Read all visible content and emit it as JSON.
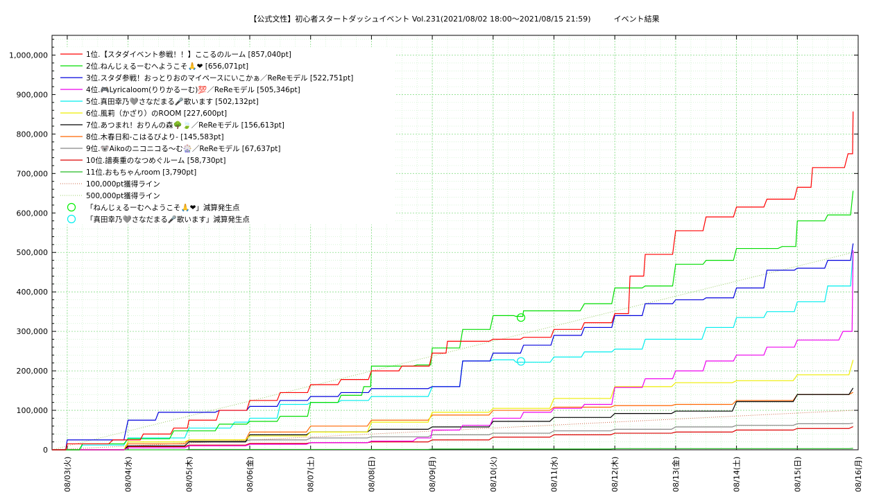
{
  "chart_data": {
    "type": "line",
    "title": "【公式文性】初心者スタートダッシュイベント Vol.231(2021/08/02 18:00〜2021/08/15 21:59)　　　イベント結果",
    "ylim": [
      0,
      1050000
    ],
    "xlim": [
      "2021-08-02 18:00",
      "2021-08-16 00:00"
    ],
    "grid": true,
    "legend_position": "top-left",
    "y_ticks": [
      "0",
      "100,000",
      "200,000",
      "300,000",
      "400,000",
      "500,000",
      "600,000",
      "700,000",
      "800,000",
      "900,000",
      "1,000,000"
    ],
    "y_tick_values": [
      0,
      100000,
      200000,
      300000,
      400000,
      500000,
      600000,
      700000,
      800000,
      900000,
      1000000
    ],
    "x_ticks": [
      "08/03(火)",
      "08/04(水)",
      "08/05(木)",
      "08/06(金)",
      "08/07(土)",
      "08/08(日)",
      "08/09(月)",
      "08/10(火)",
      "08/11(水)",
      "08/12(木)",
      "08/13(金)",
      "08/14(土)",
      "08/15(日)",
      "08/16(月)"
    ],
    "x_tick_values": [
      "2021-08-03",
      "2021-08-04",
      "2021-08-05",
      "2021-08-06",
      "2021-08-07",
      "2021-08-08",
      "2021-08-09",
      "2021-08-10",
      "2021-08-11",
      "2021-08-12",
      "2021-08-13",
      "2021-08-14",
      "2021-08-15",
      "2021-08-16"
    ],
    "series": [
      {
        "name": "1位.【スタダイベント参戦！！】ここるのルーム [857,040pt]",
        "color": "#ff0000",
        "points": [
          [
            "2021-08-02 18:00",
            0
          ],
          [
            "2021-08-03 00:00",
            15000
          ],
          [
            "2021-08-03 18:00",
            25000
          ],
          [
            "2021-08-04 06:00",
            40000
          ],
          [
            "2021-08-04 18:00",
            55000
          ],
          [
            "2021-08-05 00:00",
            75000
          ],
          [
            "2021-08-05 12:00",
            100000
          ],
          [
            "2021-08-06 00:00",
            125000
          ],
          [
            "2021-08-06 12:00",
            145000
          ],
          [
            "2021-08-07 00:00",
            165000
          ],
          [
            "2021-08-07 12:00",
            178000
          ],
          [
            "2021-08-08 00:00",
            200000
          ],
          [
            "2021-08-08 12:00",
            212000
          ],
          [
            "2021-08-09 00:00",
            245000
          ],
          [
            "2021-08-09 06:00",
            275000
          ],
          [
            "2021-08-10 00:00",
            280000
          ],
          [
            "2021-08-10 12:00",
            285000
          ],
          [
            "2021-08-11 00:00",
            305000
          ],
          [
            "2021-08-11 12:00",
            322000
          ],
          [
            "2021-08-12 00:00",
            345000
          ],
          [
            "2021-08-12 06:00",
            440000
          ],
          [
            "2021-08-12 12:00",
            495000
          ],
          [
            "2021-08-13 00:00",
            555000
          ],
          [
            "2021-08-13 12:00",
            590000
          ],
          [
            "2021-08-14 00:00",
            615000
          ],
          [
            "2021-08-14 12:00",
            635000
          ],
          [
            "2021-08-15 00:00",
            665000
          ],
          [
            "2021-08-15 06:00",
            715000
          ],
          [
            "2021-08-15 20:00",
            750000
          ],
          [
            "2021-08-15 22:00",
            857040
          ]
        ]
      },
      {
        "name": "2位.ねんじぇるーむへようこそ🙏❤ [656,071pt]",
        "color": "#00dd00",
        "points": [
          [
            "2021-08-02 18:00",
            0
          ],
          [
            "2021-08-03 06:00",
            15000
          ],
          [
            "2021-08-04 00:00",
            28000
          ],
          [
            "2021-08-04 18:00",
            48000
          ],
          [
            "2021-08-05 12:00",
            65000
          ],
          [
            "2021-08-06 00:00",
            72000
          ],
          [
            "2021-08-06 12:00",
            85000
          ],
          [
            "2021-08-07 00:00",
            120000
          ],
          [
            "2021-08-07 12:00",
            138000
          ],
          [
            "2021-08-07 21:00",
            160000
          ],
          [
            "2021-08-08 00:00",
            212000
          ],
          [
            "2021-08-08 18:00",
            215000
          ],
          [
            "2021-08-09 00:00",
            258000
          ],
          [
            "2021-08-09 12:00",
            305000
          ],
          [
            "2021-08-10 00:00",
            340000
          ],
          [
            "2021-08-10 09:00",
            338000
          ],
          [
            "2021-08-10 12:00",
            352000
          ],
          [
            "2021-08-11 12:00",
            370000
          ],
          [
            "2021-08-12 00:00",
            410000
          ],
          [
            "2021-08-12 12:00",
            415000
          ],
          [
            "2021-08-13 00:00",
            470000
          ],
          [
            "2021-08-13 12:00",
            480000
          ],
          [
            "2021-08-14 00:00",
            510000
          ],
          [
            "2021-08-14 18:00",
            515000
          ],
          [
            "2021-08-15 00:00",
            580000
          ],
          [
            "2021-08-15 12:00",
            595000
          ],
          [
            "2021-08-15 22:00",
            656071
          ]
        ]
      },
      {
        "name": "3位.スタダ参戦！おっとりおのマイペースにいこかぁ／ReReモデル [522,751pt]",
        "color": "#0000dd",
        "points": [
          [
            "2021-08-02 18:00",
            0
          ],
          [
            "2021-08-03 00:00",
            25000
          ],
          [
            "2021-08-04 00:00",
            75000
          ],
          [
            "2021-08-04 12:00",
            95000
          ],
          [
            "2021-08-05 12:00",
            100000
          ],
          [
            "2021-08-06 00:00",
            110000
          ],
          [
            "2021-08-06 12:00",
            125000
          ],
          [
            "2021-08-07 00:00",
            135000
          ],
          [
            "2021-08-07 12:00",
            145000
          ],
          [
            "2021-08-08 00:00",
            155000
          ],
          [
            "2021-08-09 00:00",
            160000
          ],
          [
            "2021-08-09 12:00",
            225000
          ],
          [
            "2021-08-10 00:00",
            245000
          ],
          [
            "2021-08-10 12:00",
            265000
          ],
          [
            "2021-08-11 00:00",
            290000
          ],
          [
            "2021-08-11 12:00",
            310000
          ],
          [
            "2021-08-12 00:00",
            340000
          ],
          [
            "2021-08-12 12:00",
            370000
          ],
          [
            "2021-08-13 00:00",
            380000
          ],
          [
            "2021-08-13 12:00",
            385000
          ],
          [
            "2021-08-14 00:00",
            410000
          ],
          [
            "2021-08-14 12:00",
            455000
          ],
          [
            "2021-08-15 00:00",
            460000
          ],
          [
            "2021-08-15 12:00",
            480000
          ],
          [
            "2021-08-15 22:00",
            522751
          ]
        ]
      },
      {
        "name": "4位.🎮Lyricaloom(りりかるーむ)💯／ReReモデル [505,346pt]",
        "color": "#ee00ee",
        "points": [
          [
            "2021-08-02 18:00",
            0
          ],
          [
            "2021-08-04 00:00",
            5000
          ],
          [
            "2021-08-05 00:00",
            10000
          ],
          [
            "2021-08-06 00:00",
            14000
          ],
          [
            "2021-08-07 00:00",
            18000
          ],
          [
            "2021-08-08 00:00",
            22000
          ],
          [
            "2021-08-08 18:00",
            30000
          ],
          [
            "2021-08-09 00:00",
            50000
          ],
          [
            "2021-08-09 12:00",
            62000
          ],
          [
            "2021-08-10 00:00",
            80000
          ],
          [
            "2021-08-10 12:00",
            95000
          ],
          [
            "2021-08-11 00:00",
            105000
          ],
          [
            "2021-08-11 12:00",
            115000
          ],
          [
            "2021-08-12 00:00",
            158000
          ],
          [
            "2021-08-12 12:00",
            180000
          ],
          [
            "2021-08-13 00:00",
            200000
          ],
          [
            "2021-08-13 12:00",
            225000
          ],
          [
            "2021-08-14 00:00",
            240000
          ],
          [
            "2021-08-14 12:00",
            260000
          ],
          [
            "2021-08-15 00:00",
            278000
          ],
          [
            "2021-08-15 18:00",
            300000
          ],
          [
            "2021-08-15 22:00",
            505346
          ]
        ]
      },
      {
        "name": "5位.真田幸乃🩶さなだまる🎤歌います [502,132pt]",
        "color": "#00eeee",
        "points": [
          [
            "2021-08-02 18:00",
            0
          ],
          [
            "2021-08-03 06:00",
            12000
          ],
          [
            "2021-08-04 00:00",
            30000
          ],
          [
            "2021-08-05 00:00",
            55000
          ],
          [
            "2021-08-05 18:00",
            70000
          ],
          [
            "2021-08-06 00:00",
            80000
          ],
          [
            "2021-08-06 12:00",
            115000
          ],
          [
            "2021-08-07 00:00",
            120000
          ],
          [
            "2021-08-07 12:00",
            125000
          ],
          [
            "2021-08-08 00:00",
            135000
          ],
          [
            "2021-08-09 00:00",
            160000
          ],
          [
            "2021-08-09 12:00",
            225000
          ],
          [
            "2021-08-10 00:00",
            228000
          ],
          [
            "2021-08-10 09:00",
            222000
          ],
          [
            "2021-08-11 00:00",
            235000
          ],
          [
            "2021-08-11 12:00",
            248000
          ],
          [
            "2021-08-12 00:00",
            255000
          ],
          [
            "2021-08-12 12:00",
            280000
          ],
          [
            "2021-08-13 12:00",
            310000
          ],
          [
            "2021-08-14 00:00",
            335000
          ],
          [
            "2021-08-14 12:00",
            350000
          ],
          [
            "2021-08-15 00:00",
            375000
          ],
          [
            "2021-08-15 12:00",
            415000
          ],
          [
            "2021-08-15 22:00",
            502132
          ]
        ]
      },
      {
        "name": "6位.風莉（かざり）のROOM [227,600pt]",
        "color": "#eeee00",
        "points": [
          [
            "2021-08-02 18:00",
            0
          ],
          [
            "2021-08-04 00:00",
            20000
          ],
          [
            "2021-08-05 00:00",
            25000
          ],
          [
            "2021-08-06 00:00",
            35000
          ],
          [
            "2021-08-07 00:00",
            45000
          ],
          [
            "2021-08-08 00:00",
            70000
          ],
          [
            "2021-08-09 00:00",
            95000
          ],
          [
            "2021-08-10 00:00",
            105000
          ],
          [
            "2021-08-11 00:00",
            130000
          ],
          [
            "2021-08-12 00:00",
            160000
          ],
          [
            "2021-08-13 00:00",
            170000
          ],
          [
            "2021-08-14 00:00",
            175000
          ],
          [
            "2021-08-15 00:00",
            190000
          ],
          [
            "2021-08-15 22:00",
            227600
          ]
        ]
      },
      {
        "name": "7位.あつまれ！おりんの森🌳🍃／ReReモデル [156,613pt]",
        "color": "#000000",
        "points": [
          [
            "2021-08-02 18:00",
            0
          ],
          [
            "2021-08-04 00:00",
            10000
          ],
          [
            "2021-08-05 00:00",
            20000
          ],
          [
            "2021-08-06 00:00",
            38000
          ],
          [
            "2021-08-07 00:00",
            45000
          ],
          [
            "2021-08-08 00:00",
            52000
          ],
          [
            "2021-08-09 00:00",
            58000
          ],
          [
            "2021-08-10 00:00",
            72000
          ],
          [
            "2021-08-11 00:00",
            82000
          ],
          [
            "2021-08-12 00:00",
            92000
          ],
          [
            "2021-08-13 00:00",
            98000
          ],
          [
            "2021-08-14 00:00",
            122000
          ],
          [
            "2021-08-15 00:00",
            140000
          ],
          [
            "2021-08-15 22:00",
            156613
          ]
        ]
      },
      {
        "name": "8位.木春日和-こはるびより- [145,583pt]",
        "color": "#ff6600",
        "points": [
          [
            "2021-08-02 18:00",
            0
          ],
          [
            "2021-08-04 00:00",
            15000
          ],
          [
            "2021-08-05 00:00",
            25000
          ],
          [
            "2021-08-06 00:00",
            45000
          ],
          [
            "2021-08-07 00:00",
            60000
          ],
          [
            "2021-08-08 00:00",
            75000
          ],
          [
            "2021-08-09 00:00",
            88000
          ],
          [
            "2021-08-10 00:00",
            100000
          ],
          [
            "2021-08-11 00:00",
            108000
          ],
          [
            "2021-08-12 00:00",
            112000
          ],
          [
            "2021-08-13 00:00",
            115000
          ],
          [
            "2021-08-14 00:00",
            125000
          ],
          [
            "2021-08-15 00:00",
            140000
          ],
          [
            "2021-08-15 22:00",
            145583
          ]
        ]
      },
      {
        "name": "9位.🐨Aikoのニコニコる〜む🎡／ReReモデル [67,637pt]",
        "color": "#888888",
        "points": [
          [
            "2021-08-02 18:00",
            0
          ],
          [
            "2021-08-04 00:00",
            20000
          ],
          [
            "2021-08-05 00:00",
            22000
          ],
          [
            "2021-08-06 00:00",
            25000
          ],
          [
            "2021-08-07 00:00",
            30000
          ],
          [
            "2021-08-08 00:00",
            33000
          ],
          [
            "2021-08-09 00:00",
            38000
          ],
          [
            "2021-08-10 00:00",
            42000
          ],
          [
            "2021-08-11 00:00",
            48000
          ],
          [
            "2021-08-12 00:00",
            52000
          ],
          [
            "2021-08-13 00:00",
            58000
          ],
          [
            "2021-08-14 00:00",
            62000
          ],
          [
            "2021-08-15 00:00",
            66000
          ],
          [
            "2021-08-15 22:00",
            67637
          ]
        ]
      },
      {
        "name": "10位.譜奏重のなつめぐルーム [58,730pt]",
        "color": "#dd0000",
        "points": [
          [
            "2021-08-02 18:00",
            0
          ],
          [
            "2021-08-04 00:00",
            8000
          ],
          [
            "2021-08-05 00:00",
            12000
          ],
          [
            "2021-08-06 00:00",
            16000
          ],
          [
            "2021-08-07 00:00",
            18000
          ],
          [
            "2021-08-08 00:00",
            20000
          ],
          [
            "2021-08-09 00:00",
            25000
          ],
          [
            "2021-08-10 00:00",
            32000
          ],
          [
            "2021-08-11 00:00",
            38000
          ],
          [
            "2021-08-12 00:00",
            42000
          ],
          [
            "2021-08-13 00:00",
            45000
          ],
          [
            "2021-08-14 00:00",
            50000
          ],
          [
            "2021-08-15 00:00",
            54000
          ],
          [
            "2021-08-15 22:00",
            58730
          ]
        ]
      },
      {
        "name": "11位.おもちゃんroom [3,790pt]",
        "color": "#22bb22",
        "points": [
          [
            "2021-08-02 18:00",
            0
          ],
          [
            "2021-08-05 00:00",
            1000
          ],
          [
            "2021-08-09 00:00",
            2000
          ],
          [
            "2021-08-12 00:00",
            3000
          ],
          [
            "2021-08-15 22:00",
            3790
          ]
        ]
      }
    ],
    "reference_lines": [
      {
        "name": "100,000pt獲得ライン",
        "color": "#cc6644",
        "points": [
          [
            "2021-08-02 18:00",
            0
          ],
          [
            "2021-08-15 22:00",
            100000
          ]
        ]
      },
      {
        "name": "500,000pt獲得ライン",
        "color": "#99cc66",
        "points": [
          [
            "2021-08-02 18:00",
            0
          ],
          [
            "2021-08-15 22:00",
            500000
          ]
        ]
      }
    ],
    "markers": [
      {
        "name": "「ねんじぇるーむへようこそ🙏❤」減算発生点",
        "color": "#00ee00",
        "x": "2021-08-10 11:00",
        "y": 335000
      },
      {
        "name": "「真田幸乃🩶さなだまる🎤歌います」減算発生点",
        "color": "#00eeee",
        "x": "2021-08-10 11:00",
        "y": 224000
      }
    ]
  }
}
